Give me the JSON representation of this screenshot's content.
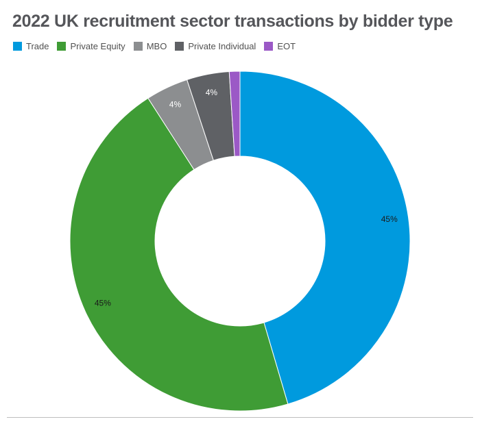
{
  "chart_data": {
    "type": "pie",
    "title": "2022 UK recruitment sector transactions by bidder type",
    "categories": [
      "Trade",
      "Private Equity",
      "MBO",
      "Private Individual",
      "EOT"
    ],
    "values": [
      45,
      45,
      4,
      4,
      1
    ],
    "data_labels": [
      "45%",
      "45%",
      "4%",
      "4%",
      ""
    ],
    "colors": [
      "#009ADE",
      "#3F9C35",
      "#8C8E90",
      "#5F6165",
      "#9B59C6"
    ],
    "legend_position": "top-left",
    "donut": true
  }
}
